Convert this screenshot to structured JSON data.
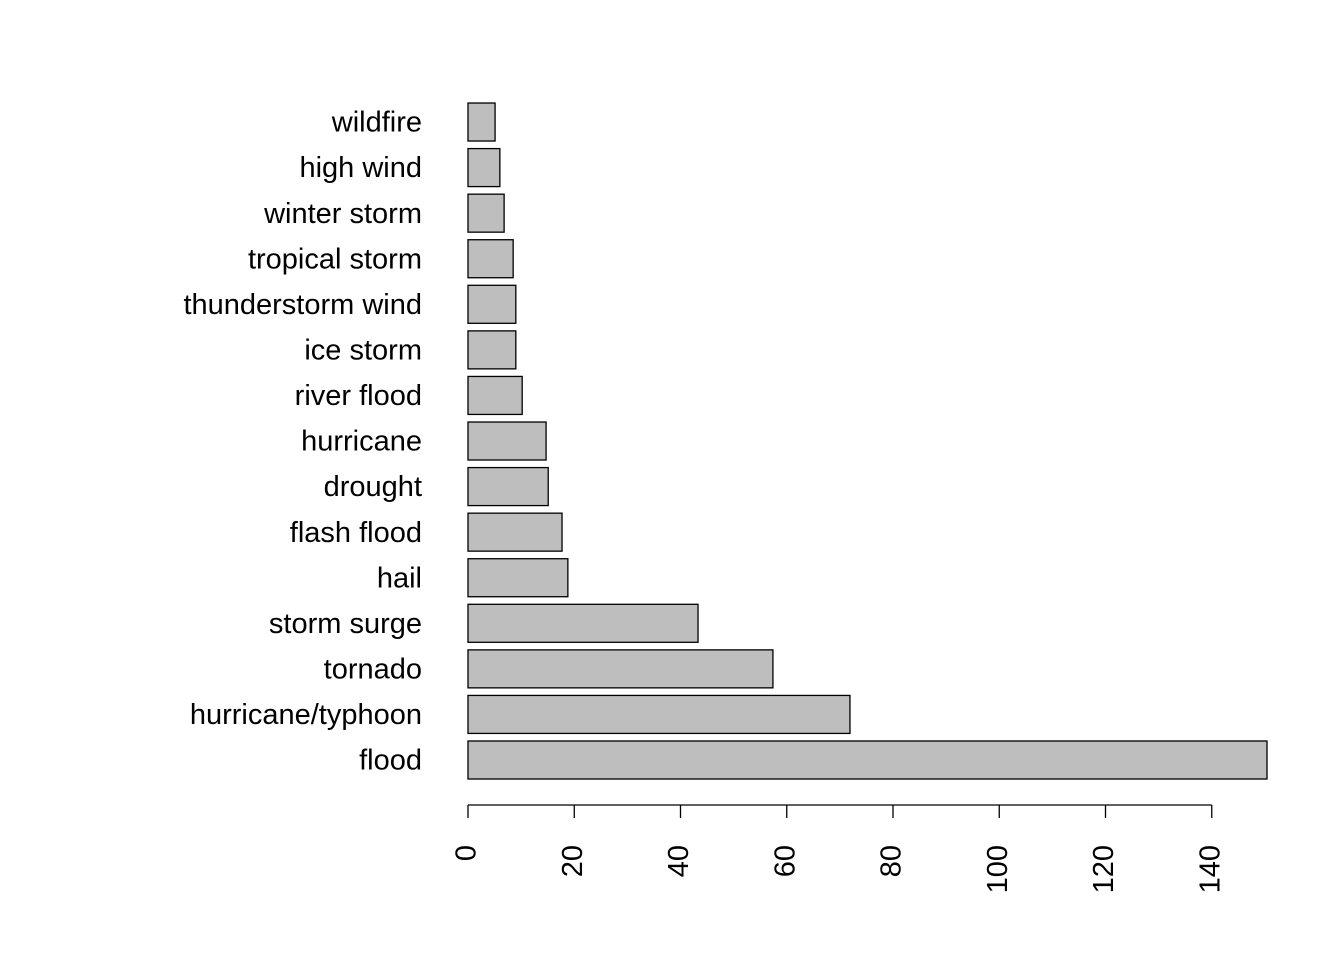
{
  "chart_data": {
    "type": "bar",
    "orientation": "horizontal",
    "categories": [
      "flood",
      "hurricane/typhoon",
      "tornado",
      "storm surge",
      "hail",
      "flash flood",
      "drought",
      "hurricane",
      "river flood",
      "ice storm",
      "thunderstorm wind",
      "tropical storm",
      "winter storm",
      "high wind",
      "wildfire"
    ],
    "values": [
      150.4,
      71.9,
      57.4,
      43.3,
      18.8,
      17.7,
      15.1,
      14.7,
      10.2,
      9.0,
      9.0,
      8.5,
      6.8,
      6.0,
      5.1
    ],
    "color": "#bebebe",
    "xlim": [
      0,
      150.4
    ],
    "xticks": [
      0,
      20,
      40,
      60,
      80,
      100,
      120,
      140
    ],
    "grid": false
  }
}
